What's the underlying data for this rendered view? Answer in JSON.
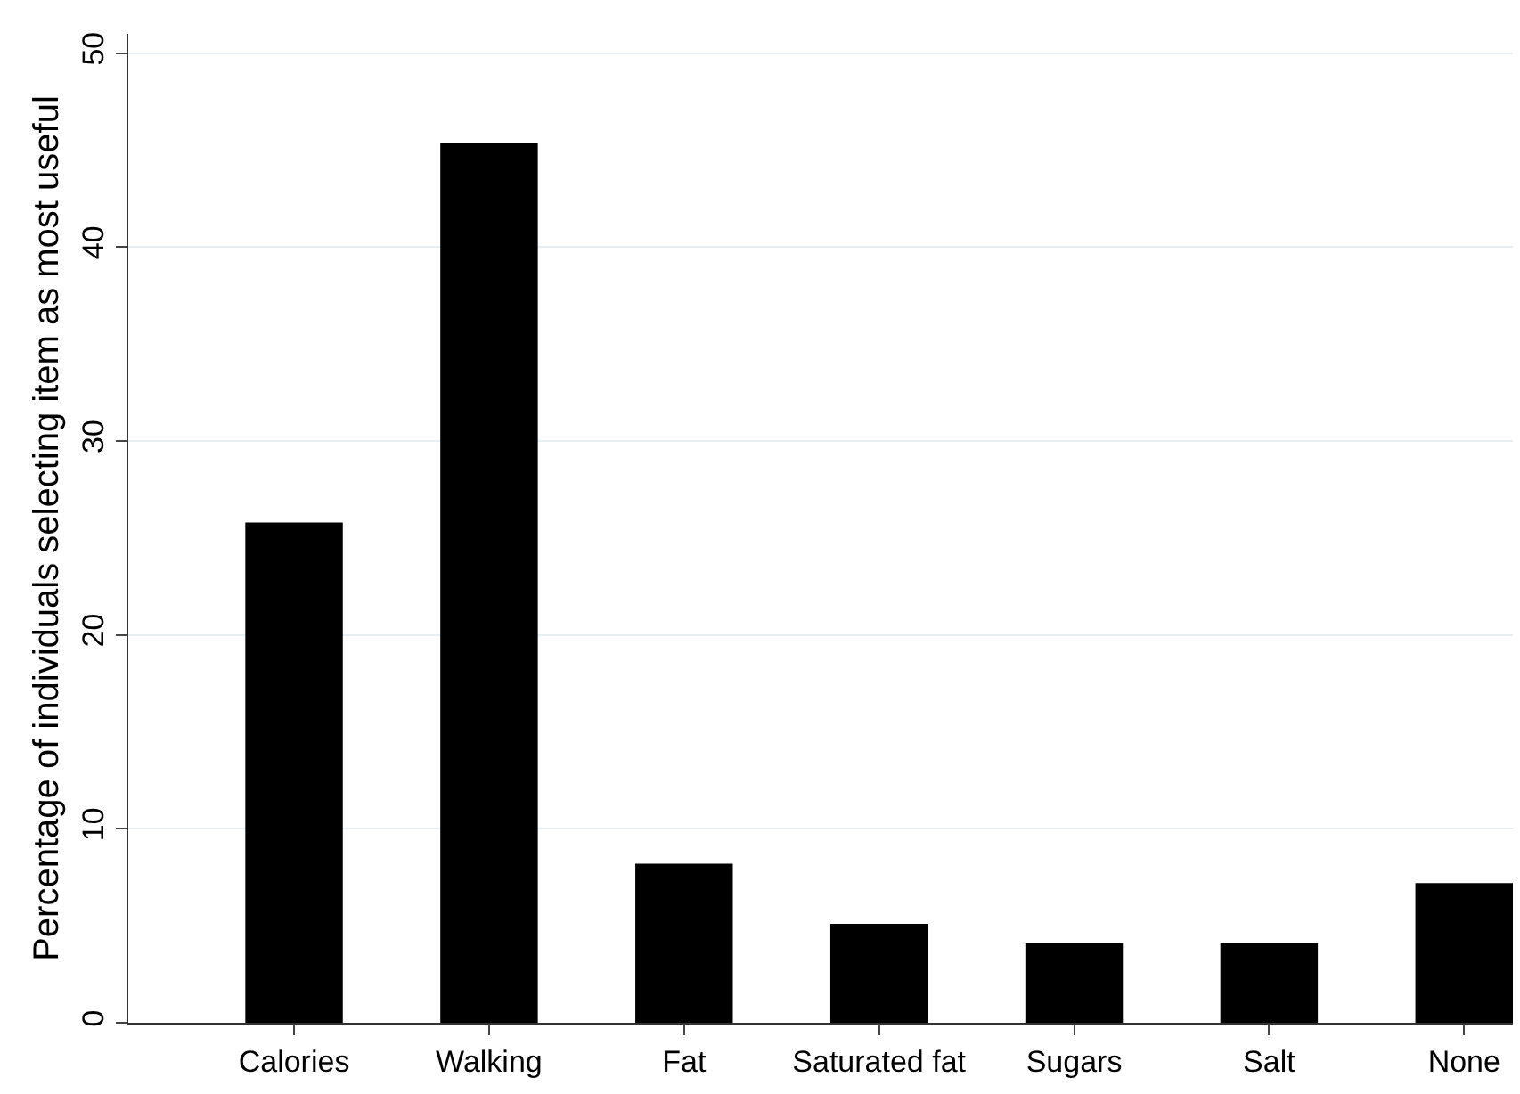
{
  "chart_data": {
    "type": "bar",
    "ylabel": "Percentage of individuals selecting item as most useful",
    "categories": [
      "Calories",
      "Walking",
      "Fat",
      "Saturated fat",
      "Sugars",
      "Salt",
      "None"
    ],
    "values": [
      25.8,
      45.4,
      8.2,
      5.1,
      4.1,
      4.1,
      7.2
    ],
    "color": "#000000",
    "ylim": [
      0,
      51
    ],
    "yticks": [
      0,
      10,
      20,
      30,
      40,
      50
    ],
    "grid": "y",
    "legend": false
  }
}
